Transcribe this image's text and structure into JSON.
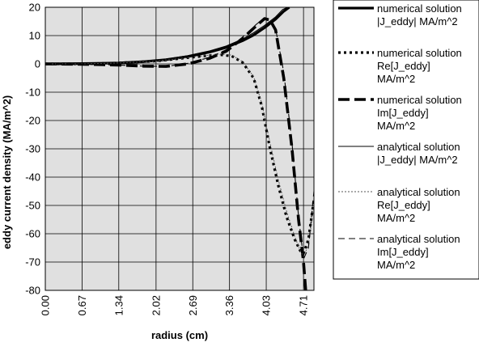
{
  "chart_data": {
    "type": "line",
    "title": "",
    "xlabel": "radius (cm)",
    "ylabel": "eddy current density (MA/m^2)",
    "xlim": [
      0,
      4.9
    ],
    "ylim": [
      -80,
      20
    ],
    "xticks": [
      "0.00",
      "0.67",
      "1.34",
      "2.02",
      "2.69",
      "3.36",
      "4.03",
      "4.71"
    ],
    "xtick_values": [
      0,
      0.67,
      1.34,
      2.02,
      2.69,
      3.36,
      4.03,
      4.71
    ],
    "yticks": [
      20,
      10,
      0,
      -10,
      -20,
      -30,
      -40,
      -50,
      -60,
      -70,
      -80
    ],
    "grid": true,
    "background": "#e0e0e0",
    "legend_position": "right",
    "series": [
      {
        "name": "numerical solution |J_eddy| MA/m^2",
        "legend_lines": [
          "numerical solution",
          "|J_eddy|  MA/m^2"
        ],
        "style": "thick-solid",
        "x": [
          0,
          0.67,
          1.34,
          1.8,
          2.2,
          2.6,
          3.0,
          3.3,
          3.6,
          3.8,
          4.0,
          4.2,
          4.35,
          4.45
        ],
        "y": [
          0,
          0.1,
          0.3,
          0.8,
          1.5,
          2.6,
          4.2,
          5.8,
          8.2,
          10.2,
          12.8,
          15.8,
          18.6,
          20
        ]
      },
      {
        "name": "numerical solution Re[J_eddy] MA/m^2",
        "legend_lines": [
          "numerical solution",
          "Re[J_eddy]",
          "MA/m^2"
        ],
        "style": "thick-dotted",
        "x": [
          0,
          0.67,
          1.34,
          2.02,
          2.5,
          2.9,
          3.2,
          3.4,
          3.6,
          3.8,
          3.95,
          4.1,
          4.25,
          4.4,
          4.55,
          4.65,
          4.71,
          4.8,
          4.9
        ],
        "y": [
          0,
          0,
          0.3,
          1,
          2,
          2.8,
          3.2,
          2.8,
          0.5,
          -5,
          -15,
          -30,
          -43,
          -54,
          -62,
          -66,
          -67,
          -62,
          -48
        ]
      },
      {
        "name": "numerical solution Im[J_eddy] MA/m^2",
        "legend_lines": [
          "numerical solution",
          "Im[J_eddy]",
          "MA/m^2"
        ],
        "style": "thick-dashed",
        "x": [
          0,
          0.67,
          1.34,
          1.8,
          2.2,
          2.6,
          3.0,
          3.3,
          3.6,
          3.85,
          4.0,
          4.1,
          4.2,
          4.35,
          4.5,
          4.62,
          4.71,
          4.75
        ],
        "y": [
          0,
          -0.1,
          -0.4,
          -0.8,
          -0.9,
          0,
          2,
          4.5,
          9,
          13.5,
          16,
          15.5,
          12,
          -5,
          -30,
          -55,
          -70,
          -80
        ]
      },
      {
        "name": "analytical solution |J_eddy| MA/m^2",
        "legend_lines": [
          "analytical solution",
          "|J_eddy|  MA/m^2"
        ],
        "style": "thin-solid",
        "x": [
          0,
          0.67,
          1.34,
          1.8,
          2.2,
          2.6,
          3.0,
          3.3,
          3.6,
          3.8,
          4.0,
          4.2,
          4.33,
          4.42
        ],
        "y": [
          0,
          0.1,
          0.3,
          0.9,
          1.7,
          2.9,
          4.6,
          6.3,
          8.8,
          11,
          13.6,
          16.6,
          19.2,
          20
        ]
      },
      {
        "name": "analytical solution Re[J_eddy] MA/m^2",
        "legend_lines": [
          "analytical solution",
          "Re[J_eddy]",
          "MA/m^2"
        ],
        "style": "thin-dotted",
        "x": [
          0,
          0.67,
          1.34,
          2.02,
          2.5,
          2.9,
          3.2,
          3.4,
          3.6,
          3.8,
          3.95,
          4.1,
          4.25,
          4.4,
          4.55,
          4.65,
          4.71,
          4.8,
          4.9
        ],
        "y": [
          0,
          0,
          0.3,
          1,
          2,
          2.9,
          3.4,
          3.1,
          0.8,
          -4.5,
          -14,
          -28,
          -41,
          -52,
          -61,
          -66,
          -68,
          -64,
          -50
        ]
      },
      {
        "name": "analytical solution Im[J_eddy] MA/m^2",
        "legend_lines": [
          "analytical solution",
          "Im[J_eddy]",
          "MA/m^2"
        ],
        "style": "thin-dashed",
        "x": [
          0,
          0.67,
          1.34,
          1.8,
          2.2,
          2.6,
          3.0,
          3.3,
          3.6,
          3.85,
          4.0,
          4.1,
          4.2,
          4.35,
          4.5,
          4.62,
          4.71,
          4.8,
          4.9
        ],
        "y": [
          0,
          -0.1,
          -0.4,
          -0.8,
          -0.9,
          0.2,
          2.3,
          5,
          9.5,
          14,
          16.3,
          15.8,
          12.5,
          -3,
          -28,
          -54,
          -69,
          -65,
          -45
        ]
      }
    ]
  }
}
